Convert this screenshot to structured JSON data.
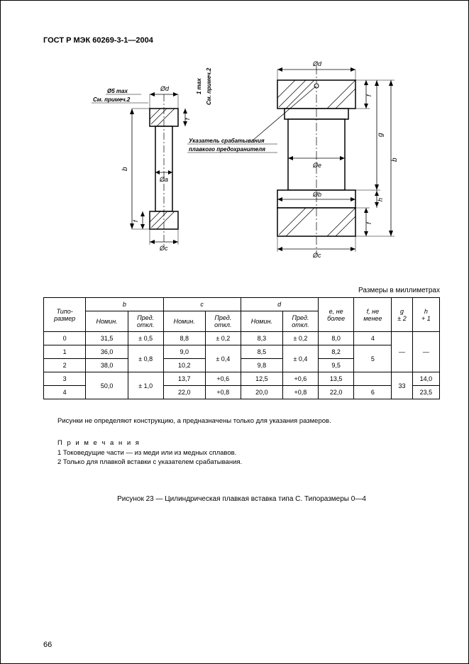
{
  "doc": {
    "header": "ГОСТ Р МЭК 60269-3-1—2004",
    "units_caption": "Размеры в миллиметрах",
    "page_number": "66",
    "figure_caption": "Рисунок  23 — Цилиндрическая плавкая вставка типа С. Типоразмеры 0—4",
    "note_intro": "Рисунки не определяют конструкцию, а предназначены только для указания размеров.",
    "notes_title": "П р и м е ч а н и я",
    "note1": "1  Токоведущие части — из меди или из медных сплавов.",
    "note2": "2  Только для плавкой вставки с указателем срабатывания."
  },
  "drawing": {
    "labels": {
      "phi_d": "Ød",
      "phi_a": "Øa",
      "phi_b": "Øb",
      "phi_c": "Øc",
      "phi_e": "Øe",
      "b": "b",
      "f": "f",
      "g": "g",
      "h": "h",
      "one_max": "1 max",
      "five_max": "Ø5 max",
      "note2_ref": "См. примеч.2",
      "indicator": "Указатель срабатывания",
      "indicator2": "плавкого предохранителя"
    },
    "stroke": "#000000",
    "hatch": "#000000",
    "fill": "#ffffff"
  },
  "table": {
    "headers": {
      "type_size": "Типо-\nразмер",
      "b": "b",
      "c": "c",
      "d": "d",
      "nomin": "Номин.",
      "pred_otkl": "Пред.\nоткл.",
      "e": "e, не\nболее",
      "f": "f, не\nменее",
      "g": "g\n± 2",
      "h": "h\n+ 1"
    },
    "rows": [
      {
        "size": "0",
        "b_nom": "31,5",
        "b_tol": "± 0,5",
        "c_nom": "8,8",
        "c_tol": "± 0,2",
        "d_nom": "8,3",
        "d_tol": "± 0,2",
        "e": "8,0",
        "f": "4",
        "g": "—",
        "h": "—"
      },
      {
        "size": "1",
        "b_nom": "36,0",
        "b_tol": "± 0,8",
        "c_nom": "9,0",
        "c_tol": "± 0,4",
        "d_nom": "8,5",
        "d_tol": "± 0,4",
        "e": "8,2",
        "f": "5",
        "g": "—",
        "h": "—"
      },
      {
        "size": "2",
        "b_nom": "38,0",
        "b_tol": "± 0,8",
        "c_nom": "10,2",
        "c_tol": "± 0,4",
        "d_nom": "9,8",
        "d_tol": "± 0,4",
        "e": "9,5",
        "f": "5",
        "g": "—",
        "h": "—"
      },
      {
        "size": "3",
        "b_nom": "50,0",
        "b_tol": "± 1,0",
        "c_nom": "13,7",
        "c_tol": "+0,6",
        "d_nom": "12,5",
        "d_tol": "+0,6",
        "e": "13,5",
        "f": "",
        "g": "33",
        "h": "14,0"
      },
      {
        "size": "4",
        "b_nom": "50,0",
        "b_tol": "± 1,0",
        "c_nom": "22,0",
        "c_tol": "+0,8",
        "d_nom": "20,0",
        "d_tol": "+0,8",
        "e": "22,0",
        "f": "6",
        "g": "33",
        "h": "23,5"
      }
    ]
  }
}
